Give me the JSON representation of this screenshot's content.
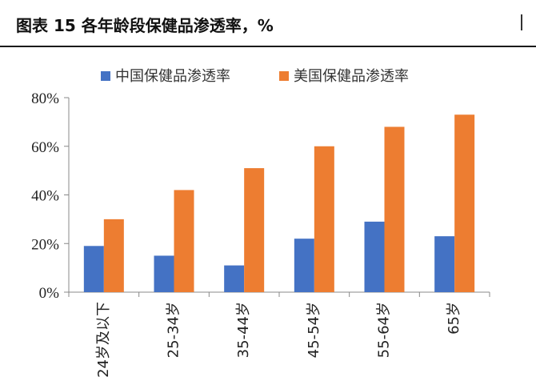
{
  "title": "图表 15 各年龄段保健品渗透率，%",
  "colors": {
    "china": "#4472C4",
    "usa": "#ED7D31",
    "axis": "#888888",
    "title_rule": "#1a1a1a"
  },
  "chart_data": {
    "type": "bar",
    "title": "图表 15 各年龄段保健品渗透率，%",
    "categories": [
      "24岁及以下",
      "25-34岁",
      "35-44岁",
      "45-54岁",
      "55-64岁",
      "65岁"
    ],
    "series": [
      {
        "name": "中国保健品渗透率",
        "values": [
          19,
          15,
          11,
          22,
          29,
          23
        ]
      },
      {
        "name": "美国保健品渗透率",
        "values": [
          30,
          42,
          51,
          60,
          68,
          73
        ]
      }
    ],
    "yticks": [
      "0%",
      "20%",
      "40%",
      "60%",
      "80%"
    ],
    "ylim": [
      0,
      80
    ],
    "ylabel": "",
    "xlabel": "",
    "legend": "top",
    "grid": false
  }
}
